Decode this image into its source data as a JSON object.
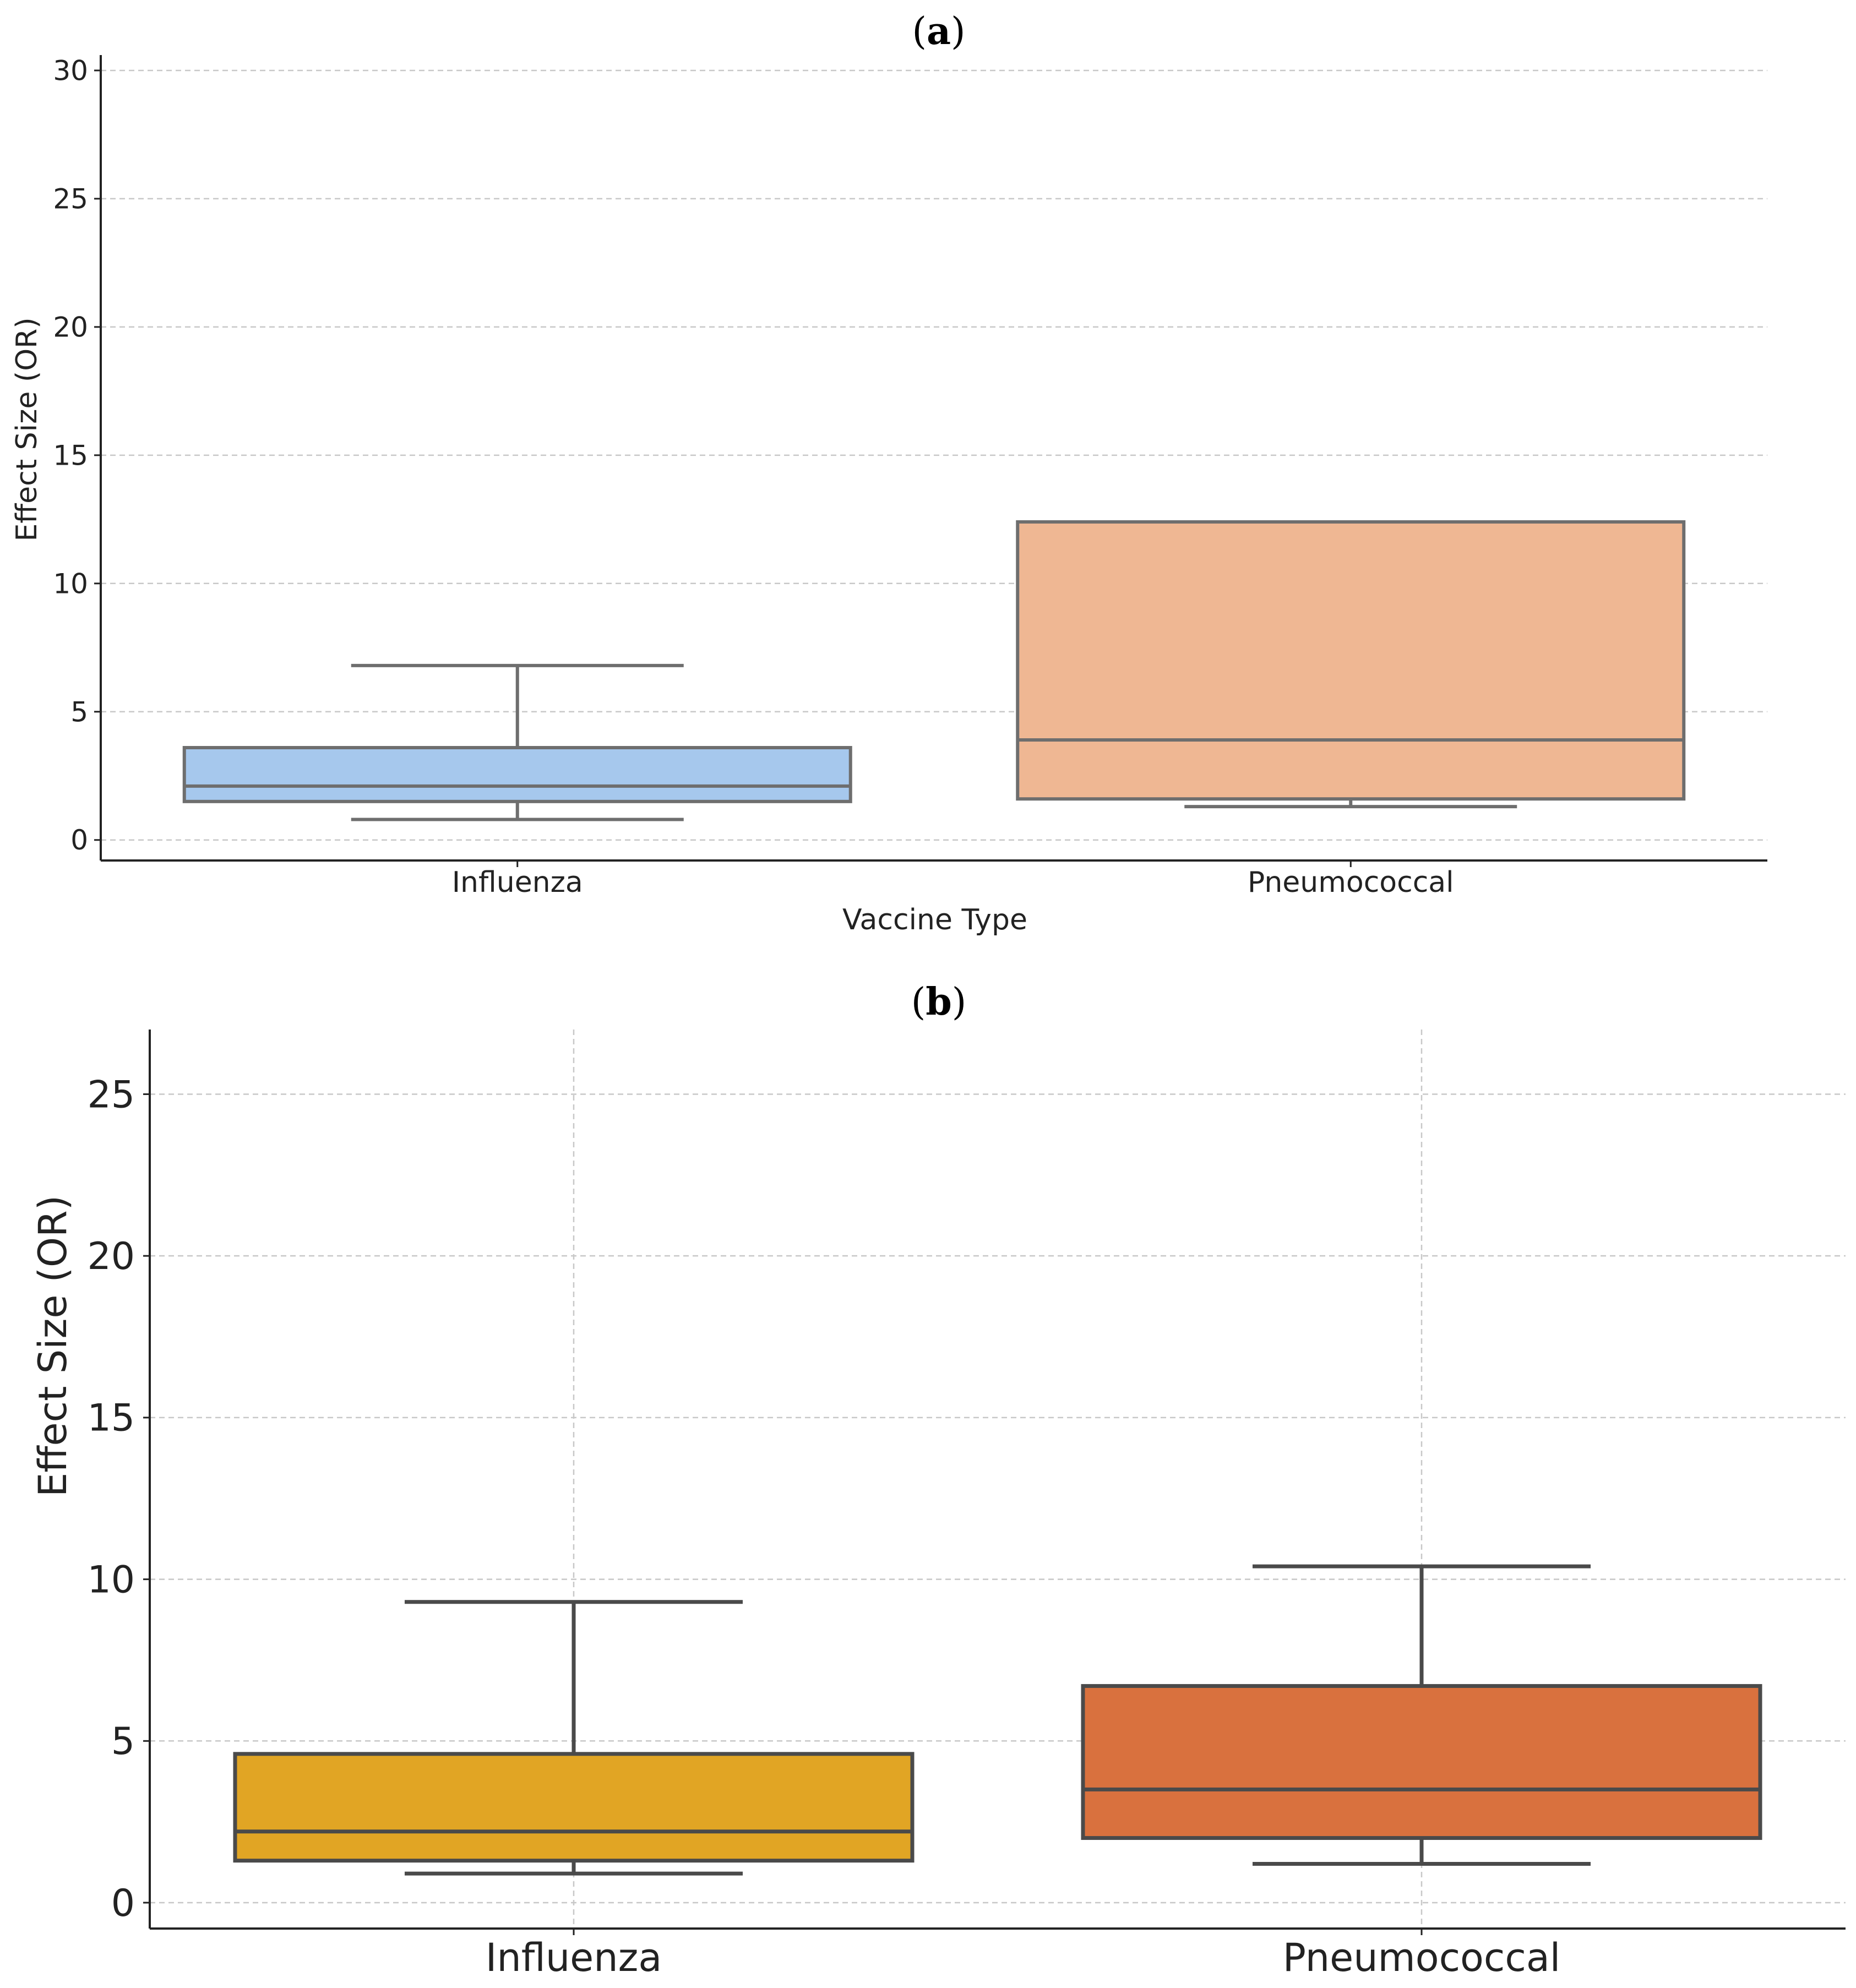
{
  "chart_data": [
    {
      "panel_label": "a",
      "type": "box",
      "title": "",
      "xlabel": "Vaccine Type",
      "ylabel": "Effect Size (OR)",
      "ylim": [
        -0.8,
        30.6
      ],
      "yticks": [
        0,
        5,
        10,
        15,
        20,
        25,
        30
      ],
      "grid": "horizontal dashed",
      "categories": [
        "Influenza",
        "Pneumococcal"
      ],
      "boxes": [
        {
          "category": "Influenza",
          "whisker_low": 0.8,
          "q1": 1.5,
          "median": 2.1,
          "q3": 3.6,
          "whisker_high": 6.8,
          "color": "#a6c8ed"
        },
        {
          "category": "Pneumococcal",
          "whisker_low": 1.3,
          "q1": 1.6,
          "median": 3.9,
          "q3": 12.4,
          "whisker_high": 12.4,
          "color": "#efb793"
        }
      ],
      "line_color": "#6e6e6e"
    },
    {
      "panel_label": "b",
      "type": "box",
      "title": "",
      "xlabel": "",
      "ylabel": "Effect Size (OR)",
      "ylim": [
        -0.8,
        27.0
      ],
      "yticks": [
        0,
        5,
        10,
        15,
        20,
        25
      ],
      "grid": "both dashed",
      "categories": [
        "Influenza",
        "Pneumococcal"
      ],
      "boxes": [
        {
          "category": "Influenza",
          "whisker_low": 0.9,
          "q1": 1.3,
          "median": 2.2,
          "q3": 4.6,
          "whisker_high": 9.3,
          "color": "#e1a524"
        },
        {
          "category": "Pneumococcal",
          "whisker_low": 1.2,
          "q1": 2.0,
          "median": 3.5,
          "q3": 6.7,
          "whisker_high": 10.4,
          "color": "#d9713e"
        }
      ],
      "line_color": "#4a4a4a"
    }
  ]
}
